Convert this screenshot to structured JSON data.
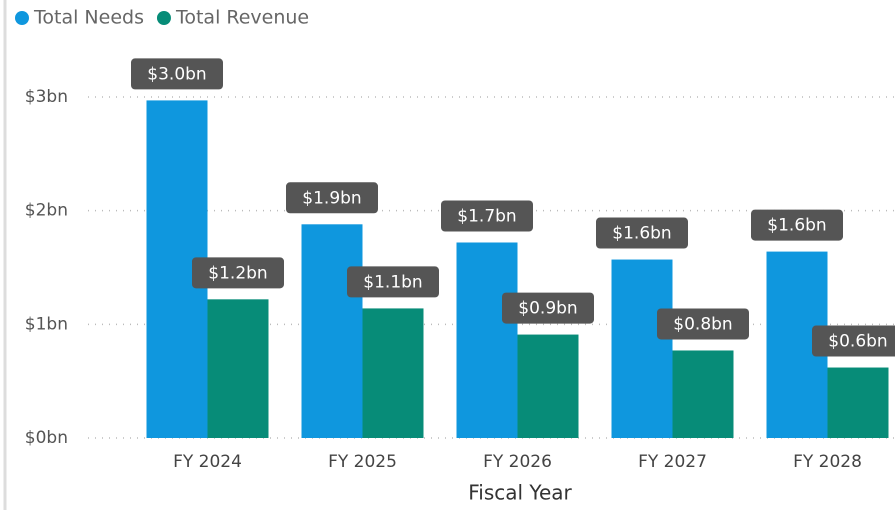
{
  "chart_data": {
    "type": "bar",
    "categories": [
      "FY 2024",
      "FY 2025",
      "FY 2026",
      "FY 2027",
      "FY 2028"
    ],
    "x_label": "Fiscal Year",
    "series": [
      {
        "name": "Total Needs",
        "color": "#0f97de",
        "values": [
          2.97,
          1.88,
          1.72,
          1.57,
          1.64
        ],
        "value_labels": [
          "$3.0bn",
          "$1.9bn",
          "$1.7bn",
          "$1.6bn",
          "$1.6bn"
        ]
      },
      {
        "name": "Total Revenue",
        "color": "#078c78",
        "values": [
          1.22,
          1.14,
          0.91,
          0.77,
          0.62
        ],
        "value_labels": [
          "$1.2bn",
          "$1.1bn",
          "$0.9bn",
          "$0.8bn",
          "$0.6bn"
        ]
      }
    ],
    "ylim": [
      0,
      3
    ],
    "yticks": [
      {
        "value": 0,
        "label": "$0bn"
      },
      {
        "value": 1,
        "label": "$1bn"
      },
      {
        "value": 2,
        "label": "$2bn"
      },
      {
        "value": 3,
        "label": "$3bn"
      }
    ],
    "grid": true,
    "legend": "top-left"
  }
}
